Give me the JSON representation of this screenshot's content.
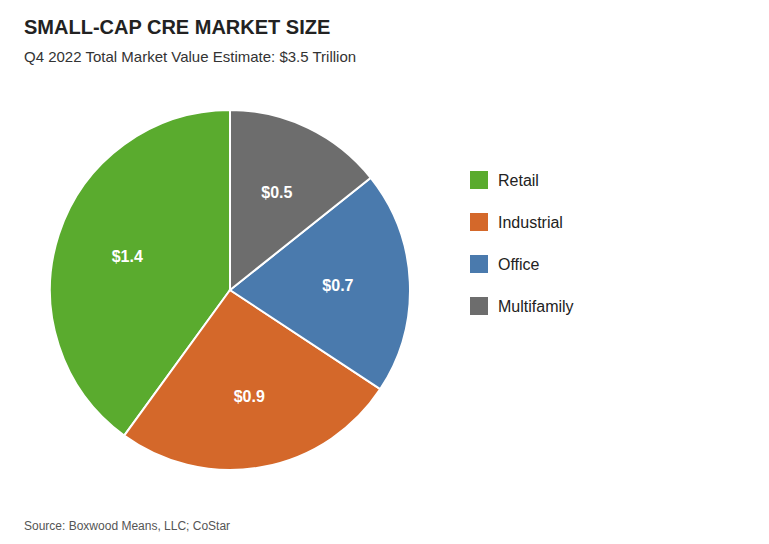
{
  "chart_data": {
    "type": "pie",
    "title": "SMALL-CAP CRE MARKET SIZE",
    "subtitle": "Q4 2022 Total Market Value Estimate: $3.5 Trillion",
    "annotations": [
      "Source: Boxwood Means, LLC; CoStar"
    ],
    "categories": [
      "Retail",
      "Industrial",
      "Office",
      "Multifamily"
    ],
    "values": [
      1.4,
      0.9,
      0.7,
      0.5
    ],
    "value_labels": [
      "$1.4",
      "$0.9",
      "$0.7",
      "$0.5"
    ],
    "colors": [
      "#5aab2e",
      "#d4682a",
      "#4a7aad",
      "#6d6d6d"
    ],
    "data_labels": true,
    "legend": "right"
  }
}
